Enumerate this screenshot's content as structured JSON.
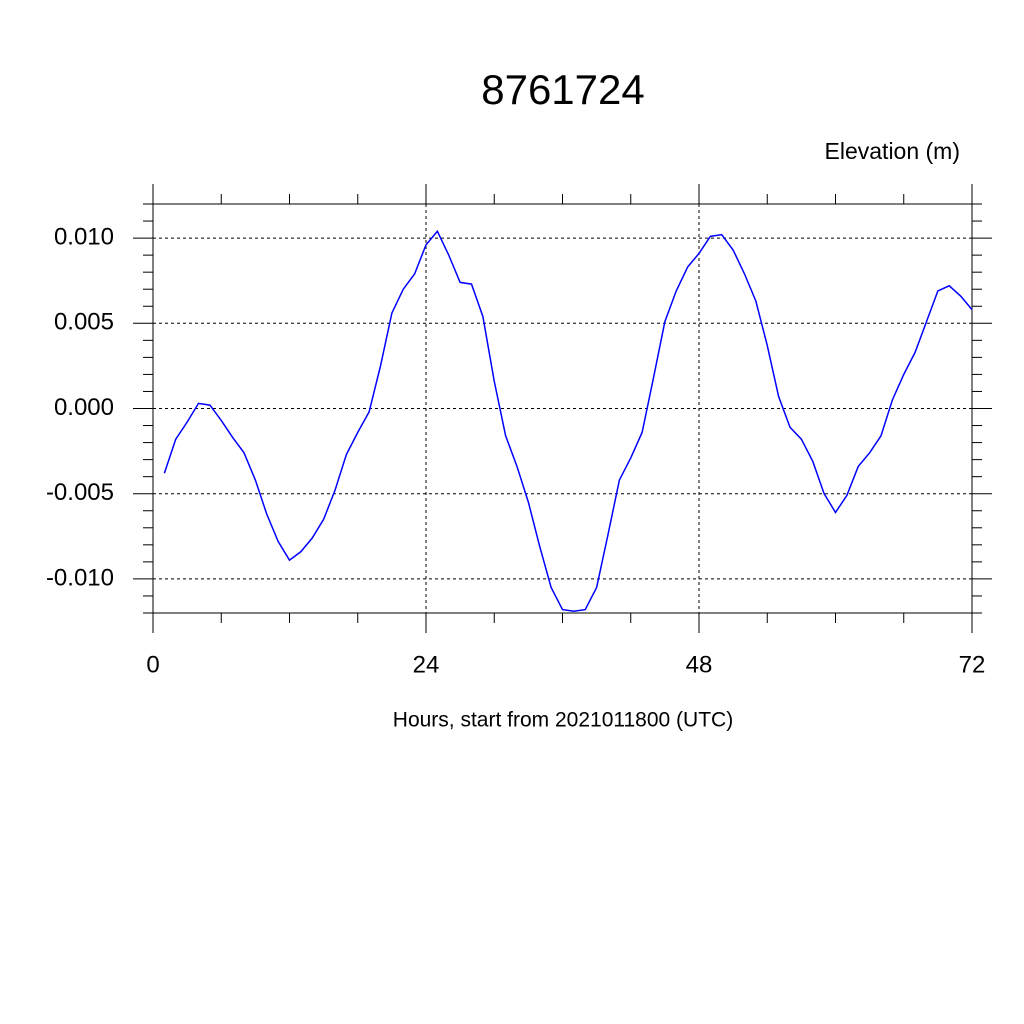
{
  "chart_data": {
    "type": "line",
    "title": "8761724",
    "y_axis_title": "Elevation (m)",
    "x_axis_title": "Hours, start from 2021011800 (UTC)",
    "x": [
      1,
      2,
      3,
      4,
      5,
      6,
      7,
      8,
      9,
      10,
      11,
      12,
      13,
      14,
      15,
      16,
      17,
      18,
      19,
      20,
      21,
      22,
      23,
      24,
      25,
      26,
      27,
      28,
      29,
      30,
      31,
      32,
      33,
      34,
      35,
      36,
      37,
      38,
      39,
      40,
      41,
      42,
      43,
      44,
      45,
      46,
      47,
      48,
      49,
      50,
      51,
      52,
      53,
      54,
      55,
      56,
      57,
      58,
      59,
      60,
      61,
      62,
      63,
      64,
      65,
      66,
      67,
      68,
      69,
      70,
      71,
      72
    ],
    "series": [
      {
        "color": "#0000ff",
        "values": [
          -0.0038,
          -0.0018,
          -0.0008,
          0.0003,
          0.0002,
          -0.0007,
          -0.0017,
          -0.0026,
          -0.0042,
          -0.0062,
          -0.0078,
          -0.0089,
          -0.0084,
          -0.0076,
          -0.0065,
          -0.0048,
          -0.0027,
          -0.0014,
          -0.0002,
          0.0025,
          0.0056,
          0.007,
          0.0079,
          0.0096,
          0.0104,
          0.009,
          0.0074,
          0.0073,
          0.0054,
          0.0016,
          -0.0016,
          -0.0034,
          -0.0055,
          -0.0081,
          -0.0105,
          -0.0118,
          -0.0119,
          -0.0118,
          -0.0105,
          -0.0074,
          -0.0042,
          -0.0029,
          -0.0014,
          0.0018,
          0.0051,
          0.0069,
          0.0083,
          0.0091,
          0.0101,
          0.0102,
          0.0093,
          0.0079,
          0.0063,
          0.0037,
          0.0007,
          -0.0011,
          -0.0018,
          -0.0031,
          -0.005,
          -0.0061,
          -0.0051,
          -0.0034,
          -0.0026,
          -0.0016,
          0.0005,
          0.002,
          0.0033,
          0.0051,
          0.0069,
          0.0072,
          0.0066,
          0.0058
        ]
      }
    ],
    "xlim": [
      0,
      72
    ],
    "xticks": [
      0,
      24,
      48,
      72
    ],
    "xminorticks": [
      6,
      12,
      18,
      30,
      36,
      42,
      54,
      60,
      66
    ],
    "ylim": [
      -0.012,
      0.012
    ],
    "yticks": [
      {
        "value": -0.01,
        "label": "-0.010"
      },
      {
        "value": -0.005,
        "label": "-0.005"
      },
      {
        "value": 0,
        "label": "0.000"
      },
      {
        "value": 0.005,
        "label": "0.005"
      },
      {
        "value": 0.01,
        "label": "0.010"
      }
    ],
    "yminorticks": [
      -0.012,
      -0.011,
      -0.009,
      -0.008,
      -0.007,
      -0.006,
      -0.004,
      -0.003,
      -0.002,
      -0.001,
      0.001,
      0.002,
      0.003,
      0.004,
      0.006,
      0.007,
      0.008,
      0.009,
      0.011,
      0.012
    ],
    "grid": true
  }
}
